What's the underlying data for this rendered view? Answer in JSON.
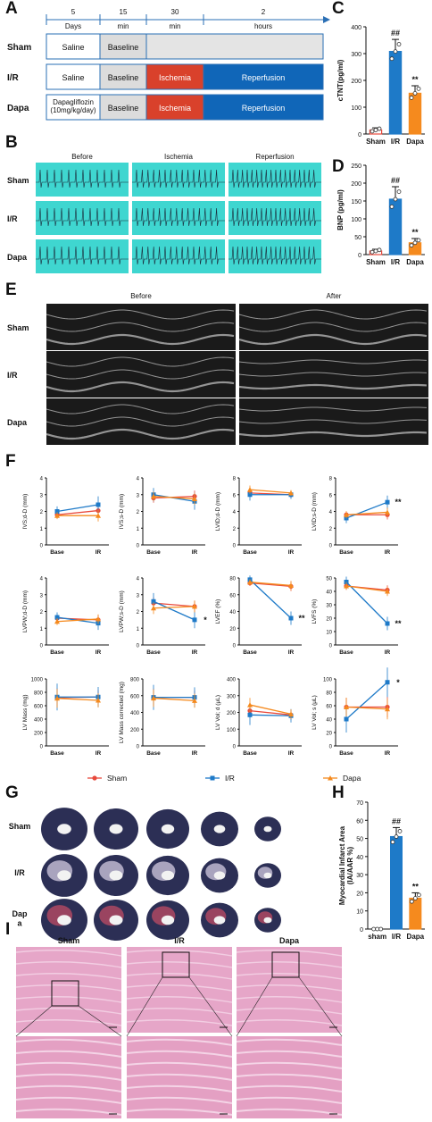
{
  "colors": {
    "sham": "#e8493c",
    "ir": "#1e7ac8",
    "dapa": "#f58a1e",
    "ischemia": "#d9412b",
    "reperfusion": "#1066b8",
    "baseline": "#dcdcdc",
    "ecg_bg": "#3fd6d0",
    "blank": "#e4e4e4"
  },
  "panel_letters": {
    "A": "A",
    "B": "B",
    "C": "C",
    "D": "D",
    "E": "E",
    "F": "F",
    "G": "G",
    "H": "H",
    "I": "I"
  },
  "panelA": {
    "timeline": [
      {
        "value": "5",
        "unit": "Days"
      },
      {
        "value": "15",
        "unit": "min"
      },
      {
        "value": "30",
        "unit": "min"
      },
      {
        "value": "2",
        "unit": "hours"
      }
    ],
    "rows": [
      {
        "label": "Sham",
        "cells": [
          "Saline",
          "Baseline",
          ""
        ]
      },
      {
        "label": "I/R",
        "cells": [
          "Saline",
          "Baseline",
          "Ischemia",
          "Reperfusion"
        ]
      },
      {
        "label": "Dapa",
        "cells": [
          "Dapagliflozin\n(10mg/kg/day)",
          "Baseline",
          "Ischemia",
          "Reperfusion"
        ]
      }
    ]
  },
  "panelB": {
    "columns": [
      "Before",
      "Ischemia",
      "Reperfusion"
    ],
    "rows": [
      "Sham",
      "I/R",
      "Dapa"
    ]
  },
  "panelE": {
    "columns": [
      "Before",
      "After"
    ],
    "rows": [
      "Sham",
      "I/R",
      "Dapa"
    ]
  },
  "panelG": {
    "rows": [
      "Sham",
      "I/R",
      "Dap\na"
    ]
  },
  "panelI": {
    "columns": [
      "Sham",
      "I/R",
      "Dapa"
    ]
  },
  "legendF": {
    "items": [
      "Sham",
      "I/R",
      "Dapa"
    ]
  },
  "chart_data": [
    {
      "id": "C",
      "type": "bar",
      "categories": [
        "Sham",
        "I/R",
        "Dapa"
      ],
      "values": [
        15,
        308,
        152
      ],
      "errors": [
        8,
        45,
        28
      ],
      "ylabel": "cTNT(pg/ml)",
      "ylim": [
        0,
        400
      ],
      "yticks": [
        0,
        100,
        200,
        300,
        400
      ],
      "annotations": [
        "",
        "##",
        "**"
      ]
    },
    {
      "id": "D",
      "type": "bar",
      "categories": [
        "Sham",
        "I/R",
        "Dapa"
      ],
      "values": [
        10,
        155,
        33
      ],
      "errors": [
        5,
        35,
        12
      ],
      "ylabel": "BNP (pg/ml)",
      "ylim": [
        0,
        250
      ],
      "yticks": [
        0,
        50,
        100,
        150,
        200,
        250
      ],
      "annotations": [
        "",
        "##",
        "**"
      ]
    },
    {
      "id": "H",
      "type": "bar",
      "categories": [
        "sham",
        "I/R",
        "Dapa"
      ],
      "values": [
        0,
        51,
        17
      ],
      "errors": [
        0,
        5,
        3
      ],
      "ylabel": "Myocardial Infarct Area\n(IA/AAR %)",
      "ylim": [
        0,
        70
      ],
      "yticks": [
        0,
        10,
        20,
        30,
        40,
        50,
        60,
        70
      ],
      "annotations": [
        "",
        "##",
        "**"
      ]
    },
    {
      "id": "F1",
      "type": "line",
      "ylabel": "IVS;d-D (mm)",
      "x": [
        "Base",
        "IR"
      ],
      "ylim": [
        0,
        4
      ],
      "yticks": [
        0,
        1,
        2,
        3,
        4
      ],
      "series": [
        {
          "name": "Sham",
          "values": [
            1.8,
            2.05
          ]
        },
        {
          "name": "I/R",
          "values": [
            2.0,
            2.4
          ]
        },
        {
          "name": "Dapa",
          "values": [
            1.75,
            1.75
          ]
        }
      ],
      "err": [
        0.3,
        0.5
      ],
      "note": ""
    },
    {
      "id": "F2",
      "type": "line",
      "ylabel": "IVS;s-D (mm)",
      "x": [
        "Base",
        "IR"
      ],
      "ylim": [
        0,
        4
      ],
      "yticks": [
        0,
        1,
        2,
        3,
        4
      ],
      "series": [
        {
          "name": "Sham",
          "values": [
            2.8,
            2.9
          ]
        },
        {
          "name": "I/R",
          "values": [
            3.0,
            2.6
          ]
        },
        {
          "name": "Dapa",
          "values": [
            2.9,
            2.75
          ]
        }
      ],
      "err": [
        0.4,
        0.5
      ],
      "note": ""
    },
    {
      "id": "F3",
      "type": "line",
      "ylabel": "LVID;d-D (mm)",
      "x": [
        "Base",
        "IR"
      ],
      "ylim": [
        0,
        8
      ],
      "yticks": [
        0,
        2,
        4,
        6,
        8
      ],
      "series": [
        {
          "name": "Sham",
          "values": [
            6.2,
            6.0
          ]
        },
        {
          "name": "I/R",
          "values": [
            6.0,
            6.0
          ]
        },
        {
          "name": "Dapa",
          "values": [
            6.6,
            6.2
          ]
        }
      ],
      "err": [
        0.7,
        0.5
      ],
      "note": ""
    },
    {
      "id": "F4",
      "type": "line",
      "ylabel": "LVID;s-D (mm)",
      "x": [
        "Base",
        "IR"
      ],
      "ylim": [
        0,
        8
      ],
      "yticks": [
        0,
        2,
        4,
        6,
        8
      ],
      "series": [
        {
          "name": "Sham",
          "values": [
            3.6,
            3.6
          ]
        },
        {
          "name": "I/R",
          "values": [
            3.2,
            5.1
          ]
        },
        {
          "name": "Dapa",
          "values": [
            3.6,
            3.9
          ]
        }
      ],
      "err": [
        0.6,
        0.8
      ],
      "note": "**"
    },
    {
      "id": "F5",
      "type": "line",
      "ylabel": "LVPW;d-D (mm)",
      "x": [
        "Base",
        "IR"
      ],
      "ylim": [
        0,
        4
      ],
      "yticks": [
        0,
        1,
        2,
        3,
        4
      ],
      "series": [
        {
          "name": "Sham",
          "values": [
            1.6,
            1.5
          ]
        },
        {
          "name": "I/R",
          "values": [
            1.65,
            1.3
          ]
        },
        {
          "name": "Dapa",
          "values": [
            1.4,
            1.55
          ]
        }
      ],
      "err": [
        0.3,
        0.4
      ],
      "note": ""
    },
    {
      "id": "F6",
      "type": "line",
      "ylabel": "LVPW;s-D (mm)",
      "x": [
        "Base",
        "IR"
      ],
      "ylim": [
        0,
        4
      ],
      "yticks": [
        0,
        1,
        2,
        3,
        4
      ],
      "series": [
        {
          "name": "Sham",
          "values": [
            2.5,
            2.3
          ]
        },
        {
          "name": "I/R",
          "values": [
            2.6,
            1.5
          ]
        },
        {
          "name": "Dapa",
          "values": [
            2.2,
            2.3
          ]
        }
      ],
      "err": [
        0.5,
        0.5
      ],
      "note": "*"
    },
    {
      "id": "F7",
      "type": "line",
      "ylabel": "LVEF (%)",
      "x": [
        "Base",
        "IR"
      ],
      "ylim": [
        0,
        80
      ],
      "yticks": [
        0,
        20,
        40,
        60,
        80
      ],
      "series": [
        {
          "name": "Sham",
          "values": [
            74,
            70
          ]
        },
        {
          "name": "I/R",
          "values": [
            78,
            32
          ]
        },
        {
          "name": "Dapa",
          "values": [
            75,
            71
          ]
        }
      ],
      "err": [
        5,
        8
      ],
      "note": "**"
    },
    {
      "id": "F8",
      "type": "line",
      "ylabel": "LVFS (%)",
      "x": [
        "Base",
        "IR"
      ],
      "ylim": [
        0,
        50
      ],
      "yticks": [
        0,
        10,
        20,
        30,
        40,
        50
      ],
      "series": [
        {
          "name": "Sham",
          "values": [
            44,
            41
          ]
        },
        {
          "name": "I/R",
          "values": [
            47,
            16
          ]
        },
        {
          "name": "Dapa",
          "values": [
            44,
            40
          ]
        }
      ],
      "err": [
        4,
        5
      ],
      "note": "**"
    },
    {
      "id": "F9",
      "type": "line",
      "ylabel": "LV Mass (mg)",
      "x": [
        "Base",
        "IR"
      ],
      "ylim": [
        0,
        1000
      ],
      "yticks": [
        0,
        200,
        400,
        600,
        800,
        1000
      ],
      "series": [
        {
          "name": "Sham",
          "values": [
            720,
            730
          ]
        },
        {
          "name": "I/R",
          "values": [
            730,
            730
          ]
        },
        {
          "name": "Dapa",
          "values": [
            710,
            680
          ]
        }
      ],
      "err": [
        200,
        150
      ],
      "note": ""
    },
    {
      "id": "F10",
      "type": "line",
      "ylabel": "LV Mass corrected (mg)",
      "x": [
        "Base",
        "IR"
      ],
      "ylim": [
        0,
        800
      ],
      "yticks": [
        0,
        200,
        400,
        600,
        800
      ],
      "series": [
        {
          "name": "Sham",
          "values": [
            580,
            580
          ]
        },
        {
          "name": "I/R",
          "values": [
            580,
            580
          ]
        },
        {
          "name": "Dapa",
          "values": [
            570,
            540
          ]
        }
      ],
      "err": [
        150,
        120
      ],
      "note": ""
    },
    {
      "id": "F11",
      "type": "line",
      "ylabel": "LV Vol; d (μL)",
      "x": [
        "Base",
        "IR"
      ],
      "ylim": [
        0,
        400
      ],
      "yticks": [
        0,
        100,
        200,
        300,
        400
      ],
      "series": [
        {
          "name": "Sham",
          "values": [
            210,
            185
          ]
        },
        {
          "name": "I/R",
          "values": [
            185,
            180
          ]
        },
        {
          "name": "Dapa",
          "values": [
            245,
            190
          ]
        }
      ],
      "err": [
        60,
        40
      ],
      "note": ""
    },
    {
      "id": "F12",
      "type": "line",
      "ylabel": "LV Vol; s (μL)",
      "x": [
        "Base",
        "IR"
      ],
      "ylim": [
        0,
        100
      ],
      "yticks": [
        0,
        20,
        40,
        60,
        80,
        100
      ],
      "series": [
        {
          "name": "Sham",
          "values": [
            58,
            58
          ]
        },
        {
          "name": "I/R",
          "values": [
            40,
            95
          ]
        },
        {
          "name": "Dapa",
          "values": [
            58,
            55
          ]
        }
      ],
      "err": [
        20,
        22
      ],
      "note": "*"
    }
  ]
}
